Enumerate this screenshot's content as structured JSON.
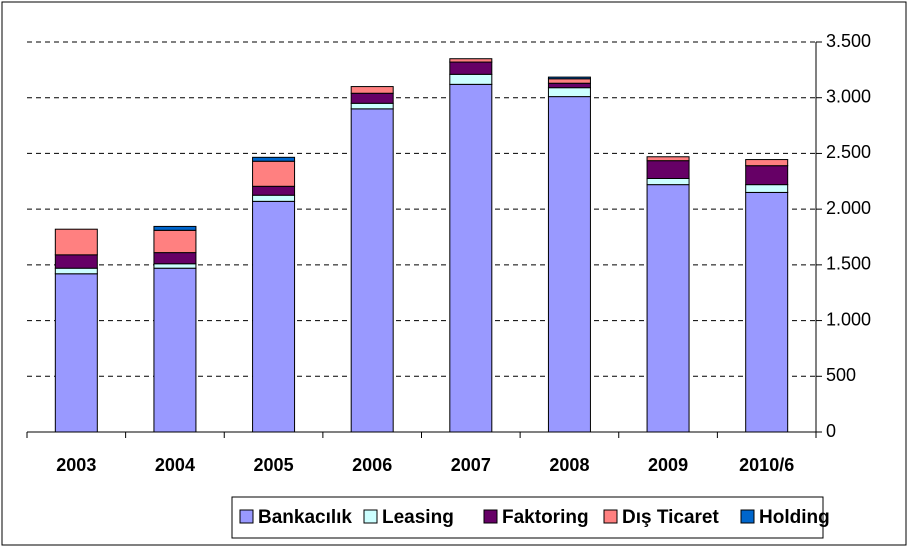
{
  "chart_data": {
    "type": "stacked_bar",
    "categories": [
      "2003",
      "2004",
      "2005",
      "2006",
      "2007",
      "2008",
      "2009",
      "2010/6"
    ],
    "series": [
      {
        "name": "Bankacılık",
        "color": "#9999ff",
        "values": [
          1420,
          1470,
          2070,
          2900,
          3120,
          3010,
          2220,
          2150
        ]
      },
      {
        "name": "Leasing",
        "color": "#ccffff",
        "values": [
          50,
          40,
          55,
          50,
          90,
          80,
          55,
          70
        ]
      },
      {
        "name": "Faktoring",
        "color": "#660066",
        "values": [
          120,
          100,
          80,
          90,
          110,
          40,
          160,
          170
        ]
      },
      {
        "name": "Dış Ticaret",
        "color": "#ff8080",
        "values": [
          230,
          200,
          225,
          60,
          30,
          40,
          35,
          55
        ]
      },
      {
        "name": "Holding",
        "color": "#0066cc",
        "values": [
          0,
          35,
          35,
          0,
          0,
          15,
          0,
          0
        ]
      }
    ],
    "ylim": [
      0,
      3500
    ],
    "yticks": [
      0,
      500,
      {
        "value": 1000,
        "label": "1.000"
      },
      {
        "value": 1500,
        "label": "1.500"
      },
      {
        "value": 2000,
        "label": "2.000"
      },
      {
        "value": 2500,
        "label": "2.500"
      },
      {
        "value": 3000,
        "label": "3.000"
      },
      {
        "value": 3500,
        "label": "3.500"
      }
    ],
    "grid": true,
    "legend": "bottom"
  }
}
